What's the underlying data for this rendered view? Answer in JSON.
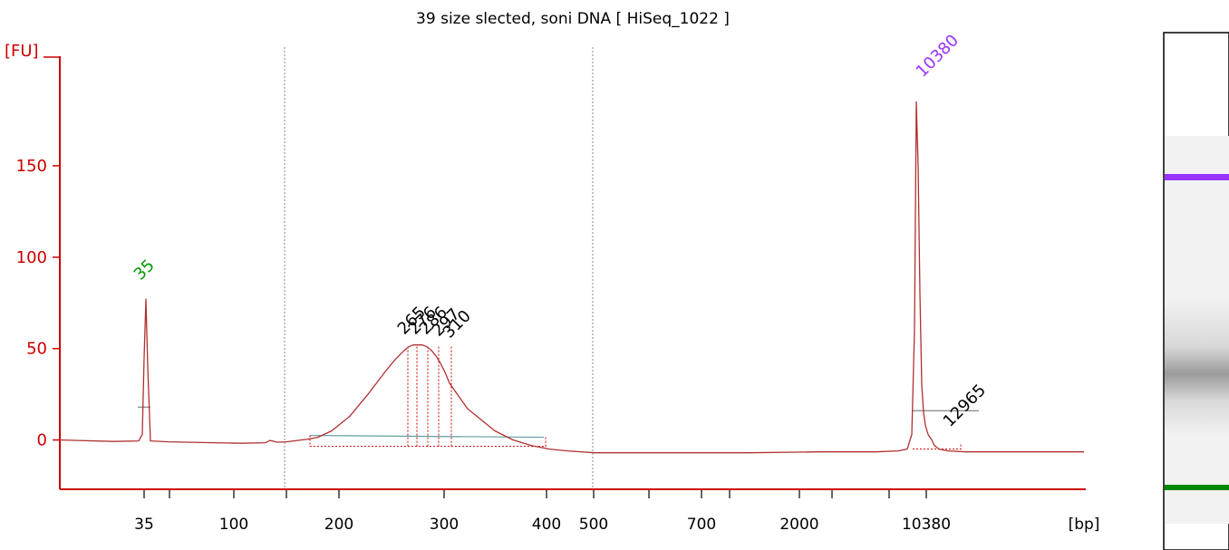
{
  "chart_data": {
    "type": "line",
    "title": "39 size slected, soni DNA  [ HiSeq_1022 ]",
    "ylabel": "[FU]",
    "xlabel": "[bp]",
    "ylim": [
      -27,
      210
    ],
    "y_ticks": [
      0,
      50,
      100,
      150
    ],
    "x_tick_labels": [
      "35",
      "100",
      "200",
      "300",
      "400",
      "500",
      "700",
      "2000",
      "10380"
    ],
    "x_unit_label": "[bp]",
    "series": [
      {
        "x": [
          0,
          20,
          60,
          87,
          91,
          93,
          95,
          97,
          100,
          120,
          200,
          227,
          232,
          240,
          250,
          275,
          285,
          300,
          320,
          340,
          360,
          370,
          380,
          385,
          390,
          395,
          400,
          405,
          410,
          415,
          420,
          425,
          430,
          450,
          480,
          500,
          520,
          540,
          560,
          590,
          620,
          680,
          760,
          840,
          900,
          925,
          935,
          940,
          943,
          945,
          947,
          949,
          951,
          953,
          955,
          958,
          962,
          965,
          970,
          980,
          1000,
          1080,
          1130
        ],
        "values": [
          0,
          -0.3,
          -0.8,
          -0.5,
          3,
          45,
          77,
          40,
          -0.5,
          -1,
          -1.8,
          -1.5,
          -0.3,
          -1.2,
          -1.0,
          0.5,
          1.5,
          5,
          13,
          25,
          38,
          44,
          49,
          51,
          52,
          52,
          52,
          51,
          49,
          46,
          42,
          37,
          31,
          17,
          5,
          0,
          -3,
          -5,
          -6,
          -7,
          -7,
          -7,
          -7,
          -6.5,
          -6.5,
          -6,
          -5,
          3,
          60,
          185,
          150,
          80,
          30,
          15,
          8,
          3,
          0,
          -3,
          -5,
          -6,
          -6.5,
          -6.5,
          -6.5
        ]
      }
    ],
    "peaks": [
      {
        "label": "35",
        "value": 77,
        "color": "#009900"
      },
      {
        "label": "265",
        "value": 52,
        "color": "#000000"
      },
      {
        "label": "276",
        "value": 52,
        "color": "#000000"
      },
      {
        "label": "286",
        "value": 52,
        "color": "#000000"
      },
      {
        "label": "297",
        "value": 52,
        "color": "#000000"
      },
      {
        "label": "310",
        "value": 52,
        "color": "#000000"
      },
      {
        "label": "10380",
        "value": 185,
        "color": "#9933ff"
      },
      {
        "label": "12965",
        "value": 12,
        "color": "#000000"
      }
    ],
    "gel_bands": [
      {
        "name": "upper-marker",
        "color": "#9933ff"
      },
      {
        "name": "sample-smear",
        "color": "#999999"
      },
      {
        "name": "lower-marker",
        "color": "#008800"
      }
    ],
    "colors": {
      "axis": "#cc0000",
      "trace": "#b03030",
      "baseline": "#5f9e9e"
    }
  }
}
